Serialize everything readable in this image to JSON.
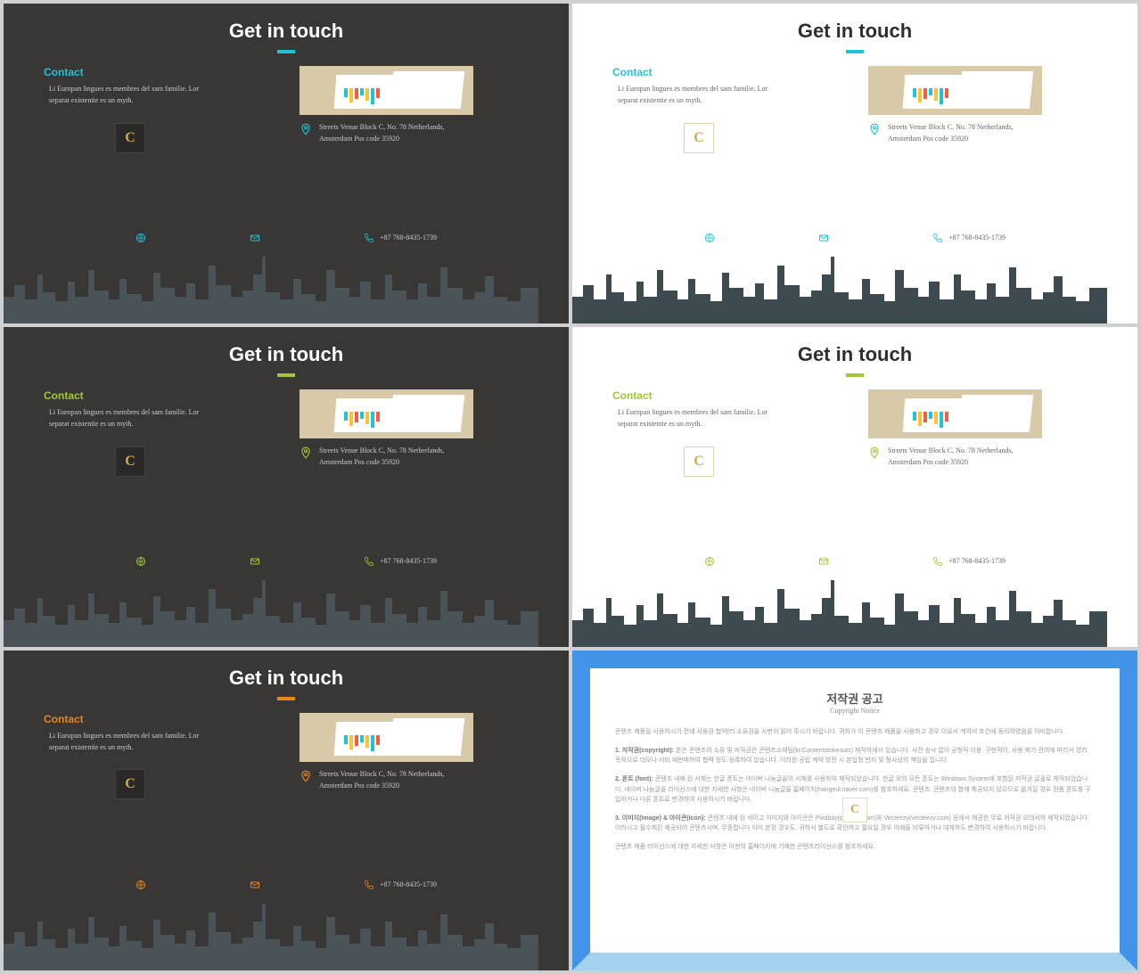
{
  "slides": [
    {
      "bg": "dark",
      "accent": "#1fc4d8",
      "contact_color": "#1fc4d8"
    },
    {
      "bg": "light",
      "accent": "#1fc4d8",
      "contact_color": "#1fc4d8"
    },
    {
      "bg": "dark",
      "accent": "#a4c639",
      "contact_color": "#a4c639"
    },
    {
      "bg": "light",
      "accent": "#a4c639",
      "contact_color": "#a4c639"
    },
    {
      "bg": "dark",
      "accent": "#e8851f",
      "contact_color": "#e8851f"
    }
  ],
  "common": {
    "title": "Get in touch",
    "contact_label": "Contact",
    "desc": "Li Europan lingues es membres del sam familie. Lor separat existentie es un myth.",
    "logo_letter": "C",
    "address": "Streets Venue Block C, No. 78 Netherlands, Amsterdam Pos code 35920",
    "phone": "+87 768-8435-1739",
    "chart_bars": [
      {
        "h": 10,
        "c": "#1fc4d8"
      },
      {
        "h": 16,
        "c": "#ffc234"
      },
      {
        "h": 12,
        "c": "#ff5a3c"
      },
      {
        "h": 8,
        "c": "#1fc4d8"
      },
      {
        "h": 14,
        "c": "#ffc234"
      },
      {
        "h": 18,
        "c": "#1fc4d8"
      },
      {
        "h": 11,
        "c": "#ff5a3c"
      }
    ]
  },
  "copyright": {
    "border_outer": "#4294e8",
    "border_bottom": "#a3d1f0",
    "title": "저작권 공고",
    "subtitle": "Copyright Notice",
    "logo_letter": "C",
    "p1": "콘텐츠 제품을 사용하시기 전에 사용권 협약(터 소유권을 사변히 읽어 주시기 바랍니다. 귀하가 이 콘텐츠 제품을 사용하고 경우 이요서 계약서 조건에 동의하였음을 의미합니다.",
    "p2_head": "1. 저작권(copyright):",
    "p2": " 본은 콘텐츠의 소유 및 저작권은 콘텐츠소재팀(kr/Contentstokeouts) 제작하에서 있습니다. 사전 승낙 없이 공형적 이용. 구현적이, 사용 제가 관여에 따라서 영리 목적으로 데모나 서비 재판매하여 협력 정도 등록하여 있습니다. 이러한 공립 계약 방전 시 본업형 판지 및 형사상의 책임을 집니다.",
    "p3_head": "2. 폰트 (font):",
    "p3": " 콘텐츠 내에 된 서체는 한글 폰트는 네이버 나눔글꼴의 서체를 사용하여 제작되었습니다. 한글 외의 모든 폰트는 Windows System에 포함된 저작권 글꼴로 제작되었습니다. 네이버 나눔글꼴 라이선스에 대한 자세한 사항은 네이버 나눔글꼴 홈페이지(hangeul.naver.com)를 참조하세요. 콘텐츠. 콘텐츠의 함께 제공되지 않으므로 옮겨질 경우 정품 폰트를 구입하거나 다른 폰트로 변경하여 사용하시기 바랍니다.",
    "p4_head": "3. 이미지(Image) & 아이콘(Icon):",
    "p4": " 콘텐츠 내에 된 서이고 이미지와 아이콘은 Pixabay(pixabay.com)와 Vecteezy(vecteezy.com) 등에서 제공한 무료 저작권 오데서하 제작되었습니다. 이러시고 필수제된 제공되어 콘텐츠시며. 무중합니다 이미 본정 경우도. 귀하서 별도로 확인하고 필요일 경우 아래들 비류하거나 대체하도 변경하여 사용하시기 바랍니다.",
    "p5": "콘텐츠 제품 라이선스에 대한 자세한 사항은 아현의 홈페이지에 기재한 콘텐츠라이선스를 참조하세요."
  },
  "icons": {
    "globe": "globe-icon",
    "mail": "mail-icon",
    "phone": "phone-icon",
    "pin": "pin-icon"
  }
}
